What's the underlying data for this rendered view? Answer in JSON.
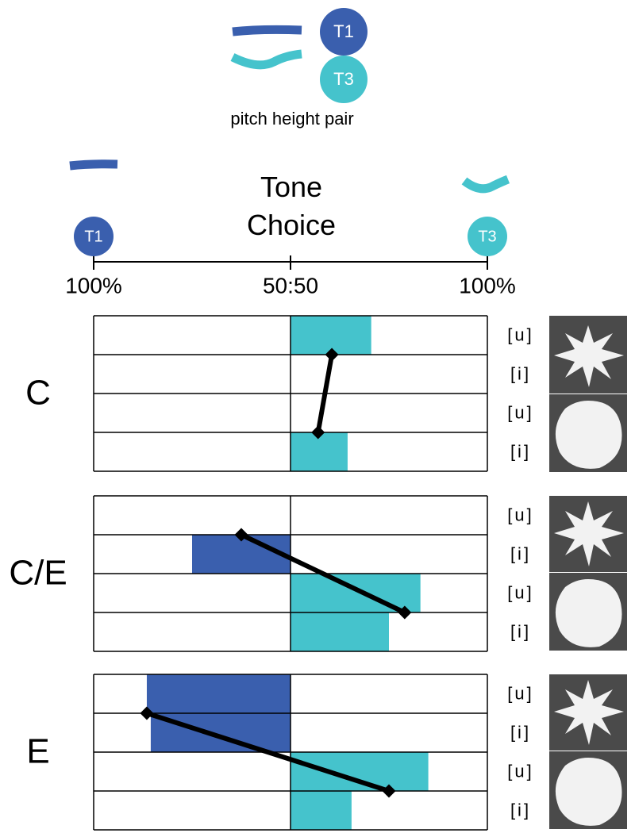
{
  "legend": {
    "items": [
      {
        "label": "T1",
        "color": "#3a5fae"
      },
      {
        "label": "T3",
        "color": "#45c3cc"
      }
    ],
    "caption": "pitch height pair"
  },
  "axis_title": "Tone Choice",
  "axis_end_labels": [
    "T1",
    "T3"
  ],
  "chart_data": [
    {
      "type": "bar",
      "title": "C",
      "categories": [
        "[u]",
        "[i]",
        "[u]",
        "[i]"
      ],
      "values": [
        41,
        null,
        null,
        29
      ],
      "line_values": [
        21,
        14
      ],
      "line_color": "#000000",
      "xlim": [
        -100,
        100
      ],
      "xticks": [
        {
          "value": -100,
          "label": "100%"
        },
        {
          "value": 0,
          "label": "50:50"
        },
        {
          "value": 100,
          "label": "100%"
        }
      ]
    },
    {
      "type": "bar",
      "title": "C/E",
      "categories": [
        "[u]",
        "[i]",
        "[u]",
        "[i]"
      ],
      "values": [
        null,
        -50,
        66,
        50
      ],
      "line_values": [
        -25,
        58
      ],
      "line_color": "#000000",
      "xlim": [
        -100,
        100
      ],
      "xticks": [
        {
          "value": -100,
          "label": "100%"
        },
        {
          "value": 0,
          "label": "50:50"
        },
        {
          "value": 100,
          "label": "100%"
        }
      ]
    },
    {
      "type": "bar",
      "title": "E",
      "categories": [
        "[u]",
        "[i]",
        "[u]",
        "[i]"
      ],
      "values": [
        -73,
        -71,
        70,
        31
      ],
      "line_values": [
        -73,
        50
      ],
      "line_color": "#000000",
      "xlim": [
        -100,
        100
      ],
      "xticks": [
        {
          "value": -100,
          "label": "100%"
        },
        {
          "value": 0,
          "label": "50:50"
        },
        {
          "value": 100,
          "label": "100%"
        }
      ]
    }
  ]
}
